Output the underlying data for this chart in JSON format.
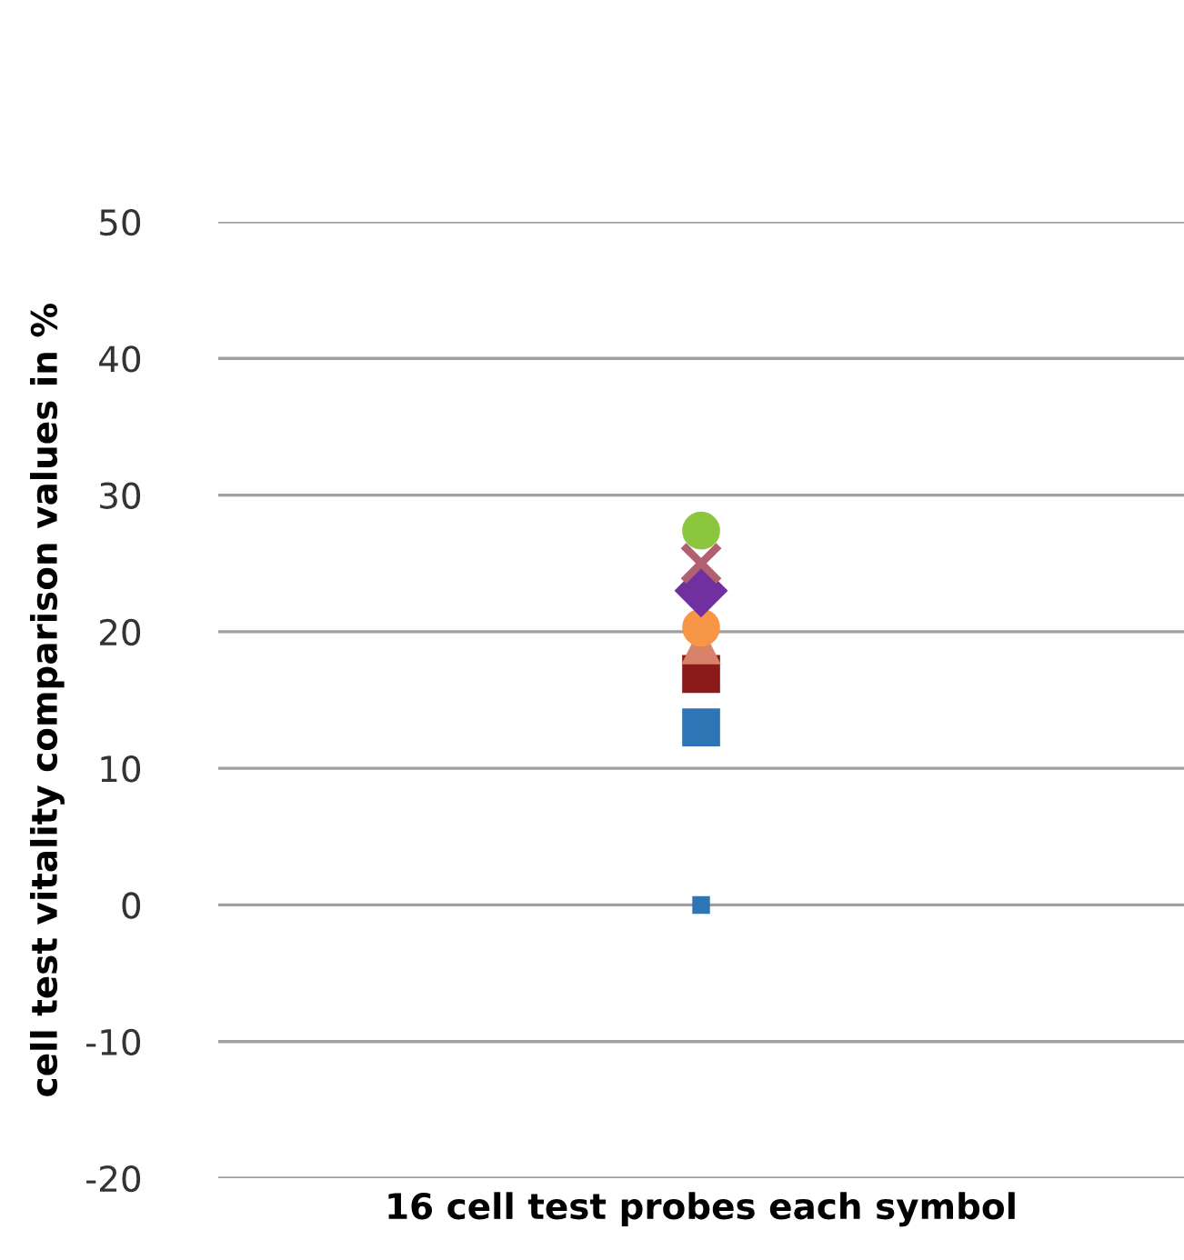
{
  "chart_data": {
    "type": "scatter",
    "ylabel": "cell test vitality comparison values in %",
    "xlabel": "16 cell test probes each symbol",
    "categories": [
      null
    ],
    "ylim": [
      -20,
      50
    ],
    "yticks": [
      -20,
      -10,
      0,
      10,
      20,
      30,
      40,
      50
    ],
    "grid": "y",
    "legend": false,
    "series": [
      {
        "color": "#2e75b6",
        "marker": "square",
        "values": [
          0
        ]
      },
      {
        "color": "#2e75b6",
        "marker": "square",
        "values": [
          13
        ]
      },
      {
        "color": "#8b1a1a",
        "marker": "square",
        "values": [
          16.9
        ]
      },
      {
        "color": "#d9826a",
        "marker": "triangle",
        "values": [
          19
        ]
      },
      {
        "color": "#f79646",
        "marker": "circle",
        "values": [
          20.3
        ]
      },
      {
        "color": "#7030a0",
        "marker": "diamond",
        "values": [
          23
        ]
      },
      {
        "color": "#b06070",
        "marker": "cross",
        "values": [
          25
        ]
      },
      {
        "color": "#8cc63f",
        "marker": "circle",
        "values": [
          27.4
        ]
      }
    ]
  }
}
